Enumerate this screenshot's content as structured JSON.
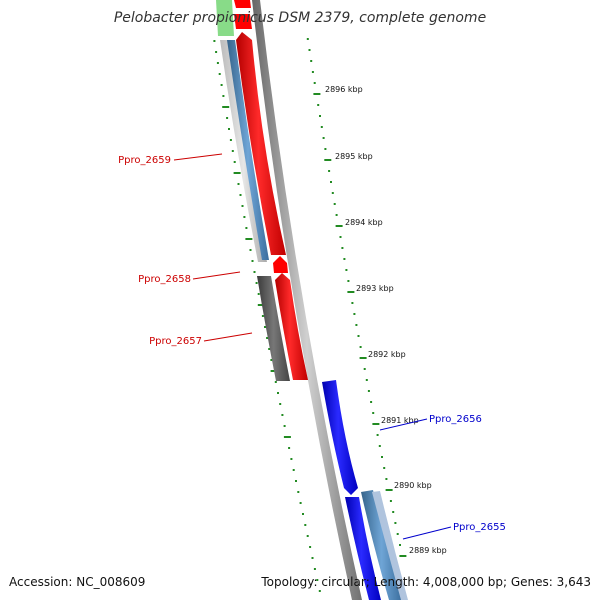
{
  "title": "Pelobacter propionicus DSM 2379, complete genome",
  "footer": {
    "accession": "Accession: NC_008609",
    "stats": "Topology: circular; Length: 4,008,000 bp; Genes: 3,643"
  },
  "scale_labels": [
    "2896 kbp",
    "2895 kbp",
    "2894 kbp",
    "2893 kbp",
    "2892 kbp",
    "2891 kbp",
    "2890 kbp",
    "2889 kbp"
  ],
  "genes": [
    {
      "name": "Ppro_2659",
      "color": "#cc0000"
    },
    {
      "name": "Ppro_2658",
      "color": "#cc0000"
    },
    {
      "name": "Ppro_2657",
      "color": "#cc0000"
    },
    {
      "name": "Ppro_2656",
      "color": "#0000cc"
    },
    {
      "name": "Ppro_2655",
      "color": "#0000cc"
    }
  ],
  "colors": {
    "forward_cds": "#ff0000",
    "reverse_cds": "#0000ff",
    "tick": "#228b22",
    "backbone": "#888888",
    "orf_dark": "#555555",
    "orf_blue": "#4682b4"
  }
}
